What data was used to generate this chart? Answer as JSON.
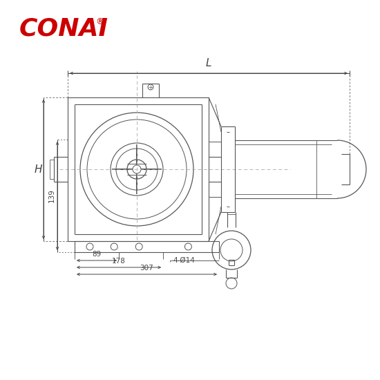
{
  "bg_color": "#ffffff",
  "lc": "#555555",
  "dc": "#444444",
  "logo_color": "#cc0000",
  "title": "CONAI",
  "reg": "®",
  "dim_L": "L",
  "dim_H": "H",
  "dim_139": "139",
  "dim_89": "89",
  "dim_178": "178",
  "dim_307": "307",
  "dim_4phi14": "4-Ø14",
  "figsize": [
    5.5,
    5.5
  ],
  "dpi": 100
}
